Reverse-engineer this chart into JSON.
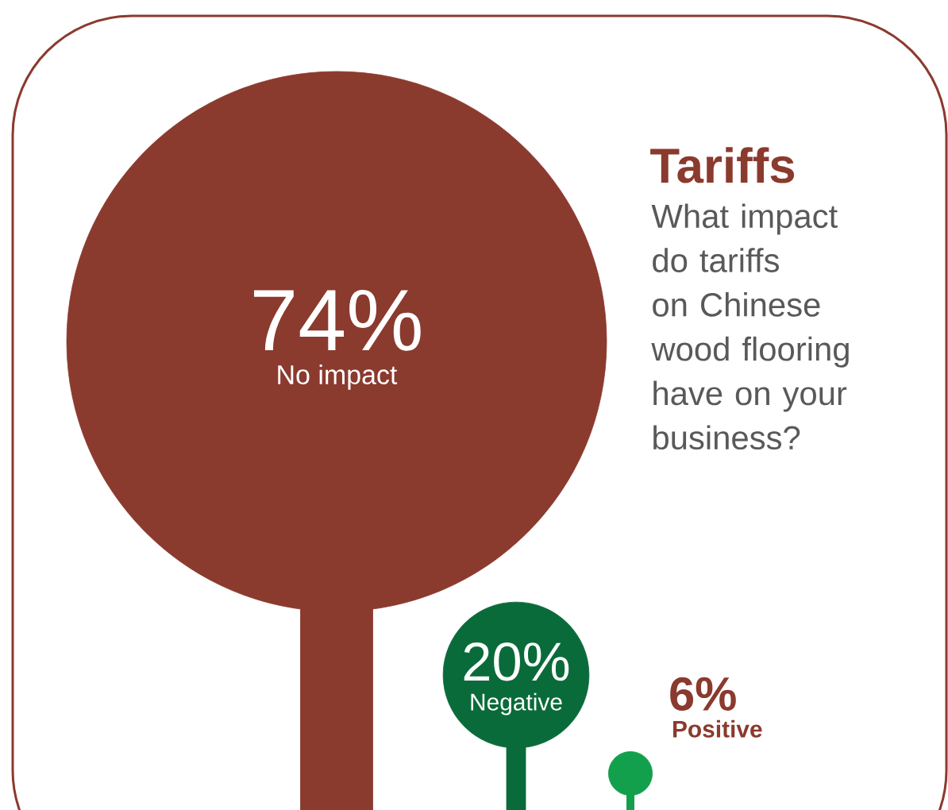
{
  "chart_data": {
    "type": "other",
    "title": "Tariffs",
    "subtitle": "What impact do tariffs on Chinese wood flooring have on your business?",
    "categories": [
      "No impact",
      "Negative",
      "Positive"
    ],
    "values": [
      74,
      20,
      6
    ],
    "value_labels": [
      "74%",
      "20%",
      "6%"
    ],
    "colors": [
      "#8b3a2e",
      "#0a6b3a",
      "#12a04c"
    ]
  }
}
